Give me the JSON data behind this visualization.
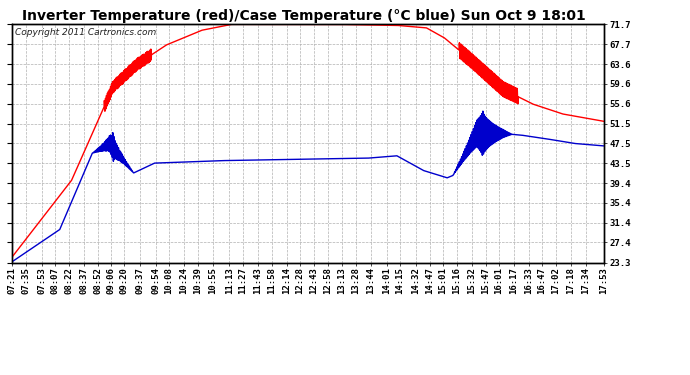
{
  "title": "Inverter Temperature (red)/Case Temperature (°C blue) Sun Oct 9 18:01",
  "copyright": "Copyright 2011 Cartronics.com",
  "ylabel_right": [
    "71.7",
    "67.7",
    "63.6",
    "59.6",
    "55.6",
    "51.5",
    "47.5",
    "43.5",
    "39.4",
    "35.4",
    "31.4",
    "27.4",
    "23.3"
  ],
  "yticks": [
    71.7,
    67.7,
    63.6,
    59.6,
    55.6,
    51.5,
    47.5,
    43.5,
    39.4,
    35.4,
    31.4,
    27.4,
    23.3
  ],
  "ylim": [
    23.3,
    71.7
  ],
  "x_labels": [
    "07:21",
    "07:35",
    "07:53",
    "08:07",
    "08:22",
    "08:37",
    "08:52",
    "09:06",
    "09:20",
    "09:37",
    "09:54",
    "10:08",
    "10:24",
    "10:39",
    "10:55",
    "11:13",
    "11:27",
    "11:43",
    "11:58",
    "12:14",
    "12:28",
    "12:43",
    "12:58",
    "13:13",
    "13:28",
    "13:44",
    "14:01",
    "14:15",
    "14:32",
    "14:47",
    "15:01",
    "15:16",
    "15:32",
    "15:47",
    "16:01",
    "16:17",
    "16:33",
    "16:47",
    "17:02",
    "17:18",
    "17:34",
    "17:53"
  ],
  "red_color": "#ff0000",
  "blue_color": "#0000cc",
  "bg_color": "#ffffff",
  "grid_color": "#b0b0b0",
  "title_fontsize": 10,
  "copyright_fontsize": 6.5,
  "tick_fontsize": 6.5,
  "line_width": 1.0,
  "red_base_xp": [
    0.0,
    0.1,
    0.17,
    0.21,
    0.26,
    0.32,
    0.37,
    0.55,
    0.65,
    0.7,
    0.73,
    0.78,
    0.83,
    0.88,
    0.93,
    1.0
  ],
  "red_base_yp": [
    24.5,
    40.0,
    59.0,
    63.5,
    67.5,
    70.5,
    71.7,
    71.7,
    71.5,
    71.0,
    69.0,
    64.0,
    58.5,
    55.5,
    53.5,
    52.0
  ],
  "blue_base_xp": [
    0.0,
    0.08,
    0.135,
    0.165,
    0.205,
    0.24,
    0.35,
    0.5,
    0.6,
    0.65,
    0.695,
    0.735,
    0.745,
    0.785,
    0.83,
    0.86,
    0.9,
    0.95,
    1.0
  ],
  "blue_base_yp": [
    23.5,
    30.0,
    45.5,
    47.5,
    41.5,
    43.5,
    44.0,
    44.3,
    44.5,
    45.0,
    42.0,
    40.5,
    41.0,
    49.5,
    49.5,
    49.2,
    48.5,
    47.5,
    47.0
  ]
}
